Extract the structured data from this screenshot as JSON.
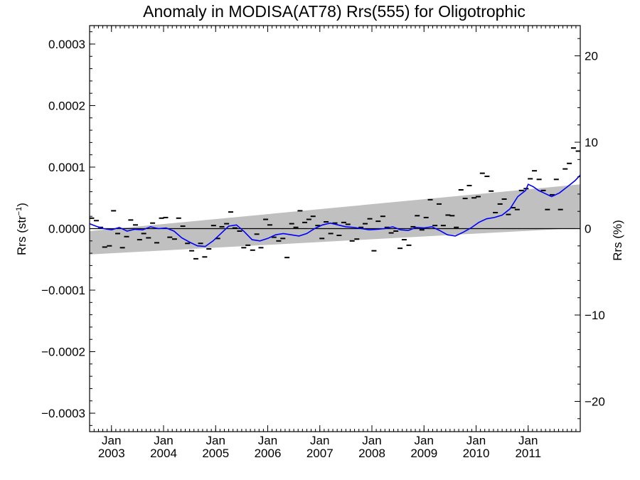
{
  "chart_data": {
    "type": "scatter",
    "title": "Anomaly in MODISA(AT78) Rrs(555) for Oligotrophic",
    "ylabel_left_main": "Rrs (str",
    "ylabel_left_sup": "−1",
    "ylabel_left_end": ")",
    "ylabel_right": "Rrs (%)",
    "xlim": [
      2002.58,
      2012.0
    ],
    "ylim_left": [
      -0.00033,
      0.00033
    ],
    "ylim_right": [
      -23.5,
      23.5
    ],
    "y_ticks_left": [
      {
        "value": 0.0003,
        "label": "0.0003"
      },
      {
        "value": 0.0002,
        "label": "0.0002"
      },
      {
        "value": 0.0001,
        "label": "0.0001"
      },
      {
        "value": 0.0,
        "label": "0.0000"
      },
      {
        "value": -0.0001,
        "label": "−0.0001"
      },
      {
        "value": -0.0002,
        "label": "−0.0002"
      },
      {
        "value": -0.0003,
        "label": "−0.0003"
      }
    ],
    "y_ticks_right": [
      {
        "value": 20,
        "label": "20"
      },
      {
        "value": 10,
        "label": "10"
      },
      {
        "value": 0,
        "label": "0"
      },
      {
        "value": -10,
        "label": "−10"
      },
      {
        "value": -20,
        "label": "−20"
      }
    ],
    "x_ticks": [
      {
        "value": 2003.0,
        "month": "Jan",
        "year": "2003"
      },
      {
        "value": 2004.0,
        "month": "Jan",
        "year": "2004"
      },
      {
        "value": 2005.0,
        "month": "Jan",
        "year": "2005"
      },
      {
        "value": 2006.0,
        "month": "Jan",
        "year": "2006"
      },
      {
        "value": 2007.0,
        "month": "Jan",
        "year": "2007"
      },
      {
        "value": 2008.0,
        "month": "Jan",
        "year": "2008"
      },
      {
        "value": 2009.0,
        "month": "Jan",
        "year": "2009"
      },
      {
        "value": 2010.0,
        "month": "Jan",
        "year": "2010"
      },
      {
        "value": 2011.0,
        "month": "Jan",
        "year": "2011"
      }
    ],
    "confidence_band": {
      "x": [
        2002.58,
        2012.0
      ],
      "upper": [
        -4e-06,
        7.2e-05
      ],
      "lower": [
        -4.2e-05,
        1e-06
      ],
      "color": "#c0c0c0"
    },
    "zero_line": 0,
    "series": [
      {
        "type": "marker",
        "color": "#000000",
        "x": [
          2002.62,
          2002.71,
          2002.79,
          2002.87,
          2002.96,
          2003.04,
          2003.12,
          2003.21,
          2003.29,
          2003.37,
          2003.46,
          2003.54,
          2003.62,
          2003.71,
          2003.79,
          2003.87,
          2003.96,
          2004.04,
          2004.12,
          2004.21,
          2004.29,
          2004.37,
          2004.46,
          2004.54,
          2004.62,
          2004.71,
          2004.79,
          2004.87,
          2004.96,
          2005.04,
          2005.12,
          2005.21,
          2005.29,
          2005.37,
          2005.46,
          2005.54,
          2005.62,
          2005.71,
          2005.79,
          2005.87,
          2005.96,
          2006.04,
          2006.12,
          2006.21,
          2006.29,
          2006.37,
          2006.46,
          2006.54,
          2006.62,
          2006.71,
          2006.79,
          2006.87,
          2006.96,
          2007.04,
          2007.12,
          2007.21,
          2007.29,
          2007.37,
          2007.46,
          2007.54,
          2007.62,
          2007.71,
          2007.79,
          2007.87,
          2007.96,
          2008.04,
          2008.12,
          2008.21,
          2008.29,
          2008.37,
          2008.46,
          2008.54,
          2008.62,
          2008.71,
          2008.79,
          2008.87,
          2008.96,
          2009.04,
          2009.12,
          2009.21,
          2009.29,
          2009.37,
          2009.46,
          2009.54,
          2009.62,
          2009.71,
          2009.79,
          2009.87,
          2009.96,
          2010.04,
          2010.12,
          2010.21,
          2010.29,
          2010.37,
          2010.46,
          2010.54,
          2010.62,
          2010.71,
          2010.79,
          2010.87,
          2010.96,
          2011.04,
          2011.12,
          2011.21,
          2011.29,
          2011.37,
          2011.46,
          2011.54,
          2011.62,
          2011.71,
          2011.79,
          2011.87,
          2011.96
        ],
        "y": [
          1.7e-05,
          1.3e-05,
          2e-06,
          -3e-05,
          -2.8e-05,
          2.9e-05,
          -8e-06,
          -3.1e-05,
          -1.3e-05,
          1.4e-05,
          6e-06,
          -1.8e-05,
          -8e-06,
          -1.5e-05,
          9e-06,
          -2.3e-05,
          1.7e-05,
          1.8e-05,
          -1.4e-05,
          -1.7e-05,
          1.7e-05,
          4e-06,
          -2.4e-05,
          -3.6e-05,
          -4.9e-05,
          -2.4e-05,
          -4.6e-05,
          -3.3e-05,
          5e-06,
          -1.6e-05,
          3e-06,
          8e-06,
          2.7e-05,
          1e-06,
          -4e-06,
          -3.1e-05,
          -2.7e-05,
          -3.5e-05,
          -9e-06,
          -3.1e-05,
          1.5e-05,
          6e-06,
          -1.4e-05,
          -2e-05,
          -1.6e-05,
          -4.7e-05,
          8e-06,
          2e-06,
          2.9e-05,
          1e-05,
          1.5e-05,
          2e-05,
          5e-06,
          -1.6e-05,
          1.1e-05,
          -8e-06,
          9e-06,
          -1.1e-05,
          1e-05,
          7e-06,
          -2e-05,
          -1.7e-05,
          2e-06,
          8e-06,
          1.6e-05,
          -3.6e-05,
          1.2e-05,
          2e-05,
          2e-06,
          -7e-06,
          -4e-06,
          -3.2e-05,
          -1.8e-05,
          -2.7e-05,
          3e-06,
          2.1e-05,
          -2e-06,
          1.8e-05,
          4.7e-05,
          5e-06,
          4e-05,
          5e-06,
          2.2e-05,
          2.1e-05,
          2e-06,
          6.3e-05,
          4.9e-05,
          7e-05,
          5e-05,
          5.2e-05,
          9e-05,
          8.5e-05,
          6.1e-05,
          2.6e-05,
          4e-05,
          4.8e-05,
          2.3e-05,
          3.4e-05,
          3.1e-05,
          6.2e-05,
          6.5e-05,
          8.1e-05,
          9.4e-05,
          8e-05,
          6.2e-05,
          3.1e-05,
          5.5e-05,
          8e-05,
          3.1e-05,
          9.7e-05,
          0.000106,
          0.000131,
          0.000126
        ]
      },
      {
        "type": "line",
        "color": "#0000ff",
        "x": [
          2002.58,
          2002.7,
          2002.85,
          2003.0,
          2003.15,
          2003.3,
          2003.45,
          2003.6,
          2003.75,
          2003.9,
          2004.05,
          2004.2,
          2004.35,
          2004.5,
          2004.65,
          2004.8,
          2004.95,
          2005.1,
          2005.25,
          2005.4,
          2005.55,
          2005.7,
          2005.85,
          2006.0,
          2006.15,
          2006.3,
          2006.45,
          2006.6,
          2006.75,
          2006.9,
          2007.05,
          2007.2,
          2007.35,
          2007.5,
          2007.65,
          2007.8,
          2007.95,
          2008.1,
          2008.25,
          2008.4,
          2008.55,
          2008.7,
          2008.85,
          2009.0,
          2009.15,
          2009.3,
          2009.45,
          2009.6,
          2009.75,
          2009.9,
          2010.05,
          2010.2,
          2010.35,
          2010.5,
          2010.65,
          2010.8,
          2010.95,
          2011.0,
          2011.1,
          2011.2,
          2011.3,
          2011.45,
          2011.6,
          2011.75,
          2011.9,
          2012.0
        ],
        "y": [
          8e-06,
          4e-06,
          0.0,
          -2e-06,
          2e-06,
          -4e-06,
          -1e-06,
          -2e-06,
          3e-06,
          0.0,
          1e-06,
          -4e-06,
          -1.5e-05,
          -2.2e-05,
          -2.8e-05,
          -2.9e-05,
          -2e-05,
          -8e-06,
          4e-06,
          6e-06,
          -5e-06,
          -1.8e-05,
          -2e-05,
          -1.6e-05,
          -1e-05,
          -8e-06,
          -1e-05,
          -1.2e-05,
          -8e-06,
          0.0,
          6e-06,
          9e-06,
          6e-06,
          3e-06,
          2e-06,
          0.0,
          -2e-06,
          -1e-06,
          0.0,
          3e-06,
          -2e-06,
          -3e-06,
          2e-06,
          1e-06,
          3e-06,
          -3e-06,
          -1e-05,
          -1.2e-05,
          -6e-06,
          1e-06,
          1e-05,
          1.6e-05,
          1.8e-05,
          2.2e-05,
          3.2e-05,
          5.2e-05,
          6.2e-05,
          7.2e-05,
          6.8e-05,
          6.2e-05,
          5.8e-05,
          5.2e-05,
          5.8e-05,
          6.8e-05,
          7.8e-05,
          8.7e-05
        ]
      }
    ],
    "grid": false
  }
}
